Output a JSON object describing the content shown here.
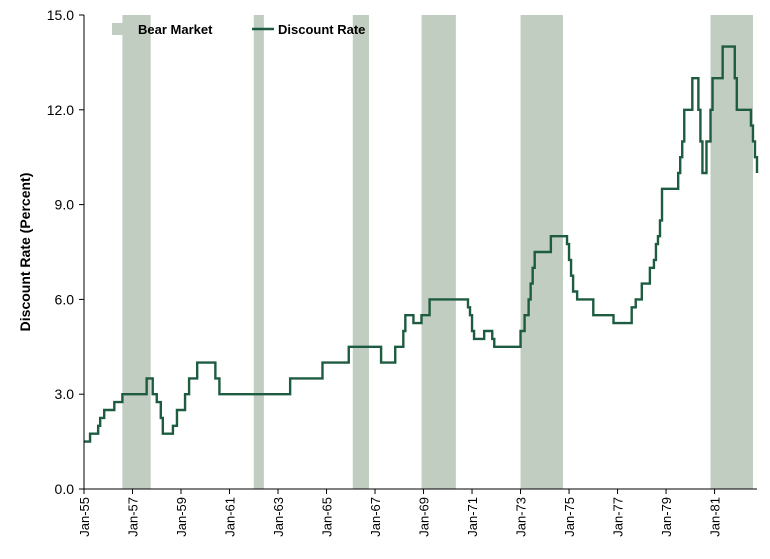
{
  "chart_data": {
    "type": "line",
    "title": "",
    "xlabel": "",
    "ylabel": "Discount Rate (Percent)",
    "ylim": [
      0,
      15
    ],
    "xlim": [
      "1955-01",
      "1982-10"
    ],
    "yticks": [
      "0.0",
      "3.0",
      "6.0",
      "9.0",
      "12.0",
      "15.0"
    ],
    "xticks": [
      "Jan-55",
      "Jan-57",
      "Jan-59",
      "Jan-61",
      "Jan-63",
      "Jan-65",
      "Jan-67",
      "Jan-69",
      "Jan-71",
      "Jan-73",
      "Jan-75",
      "Jan-77",
      "Jan-79",
      "Jan-81"
    ],
    "grid": false,
    "legend_position": "top-left",
    "legend": {
      "bear_label": "Bear Market",
      "line_label": "Discount Rate"
    },
    "colors": {
      "bear": "#c1cdc1",
      "line": "#1d5c40"
    },
    "bear_markets": [
      [
        "1956-08",
        "1957-10"
      ],
      [
        "1962-01",
        "1962-06"
      ],
      [
        "1966-02",
        "1966-10"
      ],
      [
        "1968-12",
        "1970-05"
      ],
      [
        "1973-01",
        "1974-10"
      ],
      [
        "1980-11",
        "1982-08"
      ]
    ],
    "series": [
      {
        "name": "Discount Rate",
        "step": true,
        "points": [
          [
            "1955-01",
            1.5
          ],
          [
            "1955-04",
            1.75
          ],
          [
            "1955-08",
            2.0
          ],
          [
            "1955-09",
            2.25
          ],
          [
            "1955-11",
            2.5
          ],
          [
            "1956-04",
            2.75
          ],
          [
            "1956-08",
            3.0
          ],
          [
            "1957-08",
            3.5
          ],
          [
            "1957-11",
            3.0
          ],
          [
            "1958-01",
            2.75
          ],
          [
            "1958-03",
            2.25
          ],
          [
            "1958-04",
            1.75
          ],
          [
            "1958-09",
            2.0
          ],
          [
            "1958-11",
            2.5
          ],
          [
            "1959-03",
            3.0
          ],
          [
            "1959-05",
            3.5
          ],
          [
            "1959-09",
            4.0
          ],
          [
            "1960-06",
            3.5
          ],
          [
            "1960-08",
            3.0
          ],
          [
            "1963-07",
            3.5
          ],
          [
            "1964-11",
            4.0
          ],
          [
            "1965-12",
            4.5
          ],
          [
            "1967-04",
            4.0
          ],
          [
            "1967-11",
            4.5
          ],
          [
            "1968-03",
            5.0
          ],
          [
            "1968-04",
            5.5
          ],
          [
            "1968-08",
            5.25
          ],
          [
            "1968-12",
            5.5
          ],
          [
            "1969-04",
            6.0
          ],
          [
            "1970-11",
            5.75
          ],
          [
            "1970-12",
            5.5
          ],
          [
            "1971-01",
            5.0
          ],
          [
            "1971-02",
            4.75
          ],
          [
            "1971-07",
            5.0
          ],
          [
            "1971-11",
            4.75
          ],
          [
            "1971-12",
            4.5
          ],
          [
            "1973-01",
            5.0
          ],
          [
            "1973-03",
            5.5
          ],
          [
            "1973-05",
            6.0
          ],
          [
            "1973-06",
            6.5
          ],
          [
            "1973-07",
            7.0
          ],
          [
            "1973-08",
            7.5
          ],
          [
            "1974-04",
            8.0
          ],
          [
            "1974-12",
            7.75
          ],
          [
            "1975-01",
            7.25
          ],
          [
            "1975-02",
            6.75
          ],
          [
            "1975-03",
            6.25
          ],
          [
            "1975-05",
            6.0
          ],
          [
            "1976-01",
            5.5
          ],
          [
            "1976-11",
            5.25
          ],
          [
            "1977-08",
            5.75
          ],
          [
            "1977-10",
            6.0
          ],
          [
            "1978-01",
            6.5
          ],
          [
            "1978-05",
            7.0
          ],
          [
            "1978-07",
            7.25
          ],
          [
            "1978-08",
            7.75
          ],
          [
            "1978-09",
            8.0
          ],
          [
            "1978-10",
            8.5
          ],
          [
            "1978-11",
            9.5
          ],
          [
            "1979-07",
            10.0
          ],
          [
            "1979-08",
            10.5
          ],
          [
            "1979-09",
            11.0
          ],
          [
            "1979-10",
            12.0
          ],
          [
            "1980-02",
            13.0
          ],
          [
            "1980-05",
            12.0
          ],
          [
            "1980-06",
            11.0
          ],
          [
            "1980-07",
            10.0
          ],
          [
            "1980-09",
            11.0
          ],
          [
            "1980-11",
            12.0
          ],
          [
            "1980-12",
            13.0
          ],
          [
            "1981-05",
            14.0
          ],
          [
            "1981-11",
            13.0
          ],
          [
            "1981-12",
            12.0
          ],
          [
            "1982-07",
            11.5
          ],
          [
            "1982-08",
            11.0
          ],
          [
            "1982-09",
            10.5
          ],
          [
            "1982-10",
            10.0
          ]
        ]
      }
    ]
  }
}
